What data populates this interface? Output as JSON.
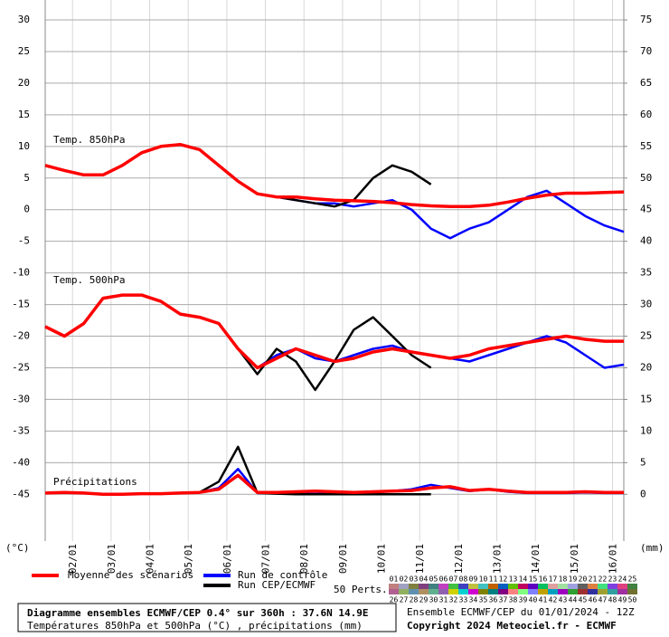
{
  "chart_data": {
    "type": "line",
    "title": "Diagramme ensembles ECMWF/CEP 0.4° sur 360h : 37.6N 14.9E",
    "subtitle": "Températures 850hPa et 500hPa (°C) , précipitations (mm)",
    "source": "Ensemble ECMWF/CEP du 01/01/2024 - 12Z",
    "copyright": "Copyright 2024 Meteociel.fr - ECMWF",
    "annotations": [
      "Temp. 850hPa",
      "Temp. 500hPa",
      "Précipitations"
    ],
    "ylabel": "(°C)",
    "y2label": "(mm)",
    "grid": true,
    "xlim": [
      0,
      360
    ],
    "xticks": [
      {
        "value": 17,
        "label": "02/01"
      },
      {
        "value": 41,
        "label": "03/01"
      },
      {
        "value": 65,
        "label": "04/01"
      },
      {
        "value": 89,
        "label": "05/01"
      },
      {
        "value": 113,
        "label": "06/01"
      },
      {
        "value": 137,
        "label": "07/01"
      },
      {
        "value": 161,
        "label": "08/01"
      },
      {
        "value": 185,
        "label": "09/01"
      },
      {
        "value": 209,
        "label": "10/01"
      },
      {
        "value": 233,
        "label": "11/01"
      },
      {
        "value": 257,
        "label": "12/01"
      },
      {
        "value": 281,
        "label": "13/01"
      },
      {
        "value": 305,
        "label": "14/01"
      },
      {
        "value": 329,
        "label": "15/01"
      },
      {
        "value": 353,
        "label": "16/01"
      }
    ],
    "ylim": [
      -52.4,
      33.15
    ],
    "yticks": [
      30,
      25,
      20,
      15,
      10,
      5,
      0,
      -5,
      -10,
      -15,
      -20,
      -25,
      -30,
      -35,
      -40,
      -45
    ],
    "y2lim": [
      -7.4,
      78.15
    ],
    "y2ticks": [
      75,
      70,
      65,
      60,
      55,
      50,
      45,
      40,
      35,
      30,
      25,
      20,
      15,
      10,
      5,
      0
    ],
    "x": [
      0,
      12,
      24,
      36,
      48,
      60,
      72,
      84,
      96,
      108,
      120,
      132,
      144,
      156,
      168,
      180,
      192,
      204,
      216,
      228,
      240,
      252,
      264,
      276,
      288,
      300,
      312,
      324,
      336,
      348,
      360
    ],
    "series": [
      {
        "name": "Moyenne des scénarios",
        "color": "#ff0000",
        "t850": [
          7,
          6.2,
          5.5,
          5.5,
          7,
          9,
          10,
          10.3,
          9.5,
          7,
          4.5,
          2.5,
          2,
          2,
          1.7,
          1.5,
          1.4,
          1.3,
          1.1,
          0.8,
          0.6,
          0.5,
          0.5,
          0.7,
          1.2,
          1.8,
          2.3,
          2.6,
          2.6,
          2.7,
          2.8
        ],
        "t500": [
          -18.5,
          -20,
          -18,
          -14,
          -13.5,
          -13.5,
          -14.5,
          -16.5,
          -17,
          -18,
          -22,
          -25,
          -23.5,
          -22,
          -23,
          -24,
          -23.5,
          -22.5,
          -22,
          -22.5,
          -23,
          -23.5,
          -23,
          -22,
          -21.5,
          -21,
          -20.5,
          -20,
          -20.5,
          -20.8,
          -20.8
        ],
        "precip": [
          0.2,
          0.3,
          0.2,
          0,
          0,
          0.1,
          0.1,
          0.2,
          0.3,
          0.8,
          3,
          0.3,
          0.3,
          0.4,
          0.5,
          0.4,
          0.3,
          0.4,
          0.5,
          0.6,
          1,
          1.2,
          0.6,
          0.8,
          0.5,
          0.3,
          0.3,
          0.3,
          0.4,
          0.3,
          0.3
        ]
      },
      {
        "name": "Run de contrôle",
        "color": "#0000ff",
        "t850": [
          7,
          6.2,
          5.5,
          5.5,
          7,
          9,
          10,
          10.3,
          9.5,
          7,
          4.5,
          2.5,
          2,
          1.5,
          1,
          1,
          0.5,
          1,
          1.5,
          0,
          -3,
          -4.5,
          -3,
          -2,
          0,
          2,
          3,
          1,
          -1,
          -2.5,
          -3.5
        ],
        "t500": [
          -18.5,
          -20,
          -18,
          -14,
          -13.5,
          -13.5,
          -14.5,
          -16.5,
          -17,
          -18,
          -22,
          -25,
          -23,
          -22,
          -23.5,
          -24,
          -23,
          -22,
          -21.5,
          -22.5,
          -23,
          -23.5,
          -24,
          -23,
          -22,
          -21,
          -20,
          -21,
          -23,
          -25,
          -24.5
        ],
        "precip": [
          0.2,
          0.3,
          0.2,
          0,
          0,
          0.1,
          0.1,
          0.2,
          0.3,
          1,
          4,
          0.2,
          0.2,
          0.3,
          0.4,
          0.2,
          0.2,
          0.3,
          0.5,
          0.8,
          1.5,
          1,
          0.5,
          0.8,
          0.4,
          0.2,
          0.2,
          0.2,
          0.3,
          0.2,
          0.2
        ]
      },
      {
        "name": "Run CEP/ECMWF",
        "color": "#000000",
        "t850": [
          7,
          6.2,
          5.5,
          5.5,
          7,
          9,
          10,
          10.3,
          9.5,
          7,
          4.5,
          2.5,
          2,
          1.5,
          1,
          0.5,
          1.5,
          5,
          7,
          6,
          4,
          null,
          null,
          null,
          null,
          null,
          null,
          null,
          null,
          null,
          null
        ],
        "t500": [
          -18.5,
          -20,
          -18,
          -14,
          -13.5,
          -13.5,
          -14.5,
          -16.5,
          -17,
          -18,
          -22,
          -26,
          -22,
          -24,
          -28.5,
          -24,
          -19,
          -17,
          -20,
          -23,
          -25,
          null,
          null,
          null,
          null,
          null,
          null,
          null,
          null,
          null,
          null
        ],
        "precip": [
          0.2,
          0.3,
          0.2,
          0,
          0,
          0.1,
          0.1,
          0.2,
          0.3,
          2,
          7.5,
          0.2,
          0.1,
          0,
          0,
          0,
          0,
          0,
          0,
          0,
          0,
          null,
          null,
          null,
          null,
          null,
          null,
          null,
          null,
          null,
          null
        ]
      }
    ],
    "perturbations_label": "50 Perts.",
    "perturbations": [
      {
        "label": "01",
        "color": "#c08080"
      },
      {
        "label": "02",
        "color": "#a0a0c0"
      },
      {
        "label": "03",
        "color": "#808040"
      },
      {
        "label": "04",
        "color": "#804080"
      },
      {
        "label": "05",
        "color": "#408080"
      },
      {
        "label": "06",
        "color": "#c040c0"
      },
      {
        "label": "07",
        "color": "#40c040"
      },
      {
        "label": "08",
        "color": "#4040c0"
      },
      {
        "label": "09",
        "color": "#c0c040"
      },
      {
        "label": "10",
        "color": "#40c0c0"
      },
      {
        "label": "11",
        "color": "#c06000"
      },
      {
        "label": "12",
        "color": "#0060c0"
      },
      {
        "label": "13",
        "color": "#60c000"
      },
      {
        "label": "14",
        "color": "#c00060"
      },
      {
        "label": "15",
        "color": "#6000c0"
      },
      {
        "label": "16",
        "color": "#00c060"
      },
      {
        "label": "17",
        "color": "#e0a0a0"
      },
      {
        "label": "18",
        "color": "#a0e0a0"
      },
      {
        "label": "19",
        "color": "#a0a0e0"
      },
      {
        "label": "20",
        "color": "#606060"
      },
      {
        "label": "21",
        "color": "#e08040"
      },
      {
        "label": "22",
        "color": "#40e080"
      },
      {
        "label": "23",
        "color": "#8040e0"
      },
      {
        "label": "24",
        "color": "#e04080"
      },
      {
        "label": "25",
        "color": "#408040"
      },
      {
        "label": "26",
        "color": "#b06090"
      },
      {
        "label": "27",
        "color": "#90b060"
      },
      {
        "label": "28",
        "color": "#6090b0"
      },
      {
        "label": "29",
        "color": "#b09060"
      },
      {
        "label": "30",
        "color": "#60b090"
      },
      {
        "label": "31",
        "color": "#9060b0"
      },
      {
        "label": "32",
        "color": "#d0d000"
      },
      {
        "label": "33",
        "color": "#00d0d0"
      },
      {
        "label": "34",
        "color": "#d000d0"
      },
      {
        "label": "35",
        "color": "#808000"
      },
      {
        "label": "36",
        "color": "#008080"
      },
      {
        "label": "37",
        "color": "#800080"
      },
      {
        "label": "38",
        "color": "#ff8080"
      },
      {
        "label": "39",
        "color": "#80ff80"
      },
      {
        "label": "40",
        "color": "#8080ff"
      },
      {
        "label": "41",
        "color": "#c0a000"
      },
      {
        "label": "42",
        "color": "#00a0c0"
      },
      {
        "label": "43",
        "color": "#a000c0"
      },
      {
        "label": "44",
        "color": "#30a030"
      },
      {
        "label": "45",
        "color": "#a03030"
      },
      {
        "label": "46",
        "color": "#3030a0"
      },
      {
        "label": "47",
        "color": "#a0a030"
      },
      {
        "label": "48",
        "color": "#30a0a0"
      },
      {
        "label": "49",
        "color": "#a030a0"
      },
      {
        "label": "50",
        "color": "#707030"
      }
    ]
  }
}
